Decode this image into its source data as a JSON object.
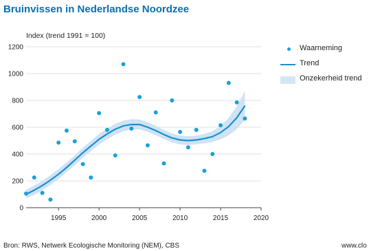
{
  "title": "Bruinvissen in Nederlandse Noordzee",
  "source": "Bron: RWS, Netwerk Ecologische Monitoring (NEM), CBS",
  "site": "www.clo",
  "colors": {
    "title": "#0a6fb0",
    "dots": "#1aa1d6",
    "trend": "#1a8fd0",
    "band": "#cfe3f5",
    "grid": "#d7d7d7"
  },
  "legend": [
    {
      "label": "Waarneming",
      "symbol": "dot"
    },
    {
      "label": "Trend",
      "symbol": "line"
    },
    {
      "label": "Onzekerheid trend",
      "symbol": "band"
    }
  ],
  "chart_data": {
    "type": "scatter",
    "title": "Bruinvissen in Nederlandse Noordzee",
    "ylabel": "Index (trend 1991 = 100)",
    "xlabel": "",
    "xlim": [
      1991,
      2020
    ],
    "ylim": [
      0,
      1200
    ],
    "xticks": [
      1995,
      2000,
      2005,
      2010,
      2015,
      2020
    ],
    "yticks": [
      0,
      200,
      400,
      600,
      800,
      1000,
      1200
    ],
    "grid": "horizontal",
    "legend_position": "right",
    "series": [
      {
        "name": "Waarneming",
        "kind": "points",
        "x": [
          1991,
          1992,
          1993,
          1994,
          1995,
          1996,
          1997,
          1998,
          1999,
          2000,
          2001,
          2002,
          2003,
          2004,
          2005,
          2006,
          2007,
          2008,
          2009,
          2010,
          2011,
          2012,
          2013,
          2014,
          2015,
          2016,
          2017,
          2018
        ],
        "y": [
          105,
          225,
          110,
          60,
          485,
          575,
          495,
          325,
          225,
          705,
          580,
          390,
          1070,
          590,
          825,
          465,
          710,
          330,
          800,
          565,
          450,
          580,
          275,
          400,
          615,
          930,
          785,
          665
        ]
      },
      {
        "name": "Trend",
        "kind": "line",
        "x": [
          1991,
          1992,
          1993,
          1994,
          1995,
          1996,
          1997,
          1998,
          1999,
          2000,
          2001,
          2002,
          2003,
          2004,
          2005,
          2006,
          2007,
          2008,
          2009,
          2010,
          2011,
          2012,
          2013,
          2014,
          2015,
          2016,
          2017,
          2018
        ],
        "y": [
          100,
          130,
          165,
          205,
          250,
          300,
          355,
          410,
          460,
          510,
          550,
          585,
          610,
          620,
          620,
          600,
          575,
          545,
          520,
          505,
          500,
          505,
          515,
          530,
          560,
          605,
          670,
          760
        ]
      },
      {
        "name": "Onzekerheid trend",
        "kind": "band",
        "x": [
          1991,
          1992,
          1993,
          1994,
          1995,
          1996,
          1997,
          1998,
          1999,
          2000,
          2001,
          2002,
          2003,
          2004,
          2005,
          2006,
          2007,
          2008,
          2009,
          2010,
          2011,
          2012,
          2013,
          2014,
          2015,
          2016,
          2017,
          2018
        ],
        "lower": [
          70,
          95,
          130,
          170,
          215,
          265,
          318,
          372,
          422,
          470,
          510,
          545,
          570,
          582,
          583,
          565,
          541,
          512,
          487,
          472,
          467,
          472,
          480,
          490,
          510,
          540,
          585,
          655
        ],
        "upper": [
          135,
          165,
          200,
          242,
          288,
          337,
          392,
          448,
          498,
          550,
          590,
          625,
          650,
          660,
          658,
          637,
          611,
          580,
          553,
          538,
          533,
          538,
          550,
          570,
          610,
          670,
          755,
          870
        ]
      }
    ]
  }
}
